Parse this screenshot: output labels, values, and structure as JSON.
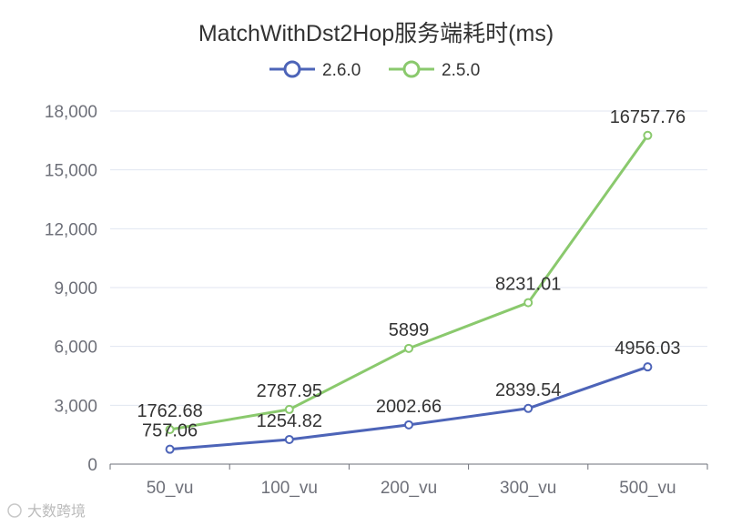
{
  "chart_data": {
    "type": "line",
    "title": "MatchWithDst2Hop服务端耗时(ms)",
    "categories": [
      "50_vu",
      "100_vu",
      "200_vu",
      "300_vu",
      "500_vu"
    ],
    "series": [
      {
        "name": "2.6.0",
        "color": "#4d64b8",
        "values": [
          757.06,
          1254.82,
          2002.66,
          2839.54,
          4956.03
        ],
        "labels": [
          "757.06",
          "1254.82",
          "2002.66",
          "2839.54",
          "4956.03"
        ]
      },
      {
        "name": "2.5.0",
        "color": "#8ac96d",
        "values": [
          1762.68,
          2787.95,
          5899,
          8231.01,
          16757.76
        ],
        "labels": [
          "1762.68",
          "2787.95",
          "5899",
          "8231.01",
          "16757.76"
        ]
      }
    ],
    "ylim": [
      0,
      18000
    ],
    "yticks": [
      0,
      3000,
      6000,
      9000,
      12000,
      15000,
      18000
    ],
    "ytick_labels": [
      "0",
      "3,000",
      "6,000",
      "9,000",
      "12,000",
      "15,000",
      "18,000"
    ],
    "xlabel": "",
    "ylabel": "",
    "grid": true,
    "legend_position": "top-center"
  },
  "watermark": {
    "text": "大数跨境"
  }
}
